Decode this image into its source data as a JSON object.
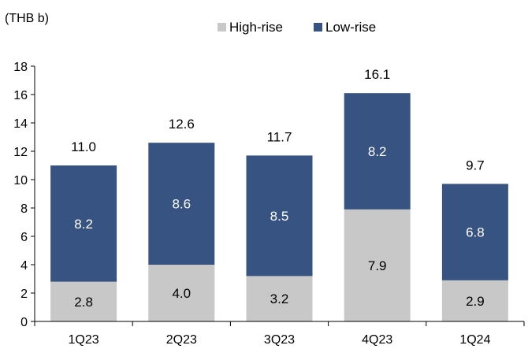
{
  "chart_data": {
    "type": "bar",
    "stacked": true,
    "unit_label": "(THB b)",
    "categories": [
      "1Q23",
      "2Q23",
      "3Q23",
      "4Q23",
      "1Q24"
    ],
    "series": [
      {
        "name": "High-rise",
        "values": [
          2.8,
          4.0,
          3.2,
          7.9,
          2.9
        ],
        "labels": [
          "2.8",
          "4.0",
          "3.2",
          "7.9",
          "2.9"
        ],
        "color": "#c8c8c8",
        "label_color": "#000000"
      },
      {
        "name": "Low-rise",
        "values": [
          8.2,
          8.6,
          8.5,
          8.2,
          6.8
        ],
        "labels": [
          "8.2",
          "8.6",
          "8.5",
          "8.2",
          "6.8"
        ],
        "color": "#365382",
        "label_color": "#ffffff"
      }
    ],
    "totals": [
      11.0,
      12.6,
      11.7,
      16.1,
      9.7
    ],
    "total_labels": [
      "11.0",
      "12.6",
      "11.7",
      "16.1",
      "9.7"
    ],
    "ylim": [
      0,
      18
    ],
    "yticks": [
      0,
      2,
      4,
      6,
      8,
      10,
      12,
      14,
      16,
      18
    ],
    "grid": false,
    "legend_position": "top"
  }
}
